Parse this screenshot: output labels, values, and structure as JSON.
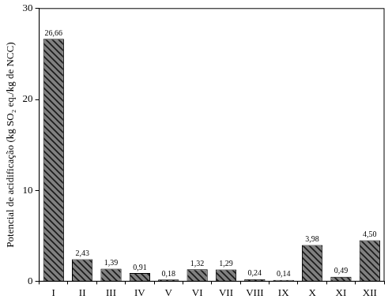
{
  "chart_data": {
    "type": "bar",
    "y_label": "Potencial de acidificação (kg SO₂ eq./kg de NCC)",
    "categories": [
      "I",
      "II",
      "III",
      "IV",
      "V",
      "VI",
      "VII",
      "VIII",
      "IX",
      "X",
      "XI",
      "XII"
    ],
    "values": [
      26.66,
      2.43,
      1.39,
      0.91,
      0.18,
      1.32,
      1.29,
      0.24,
      0.14,
      3.98,
      0.49,
      4.5
    ],
    "value_labels": [
      "26,66",
      "2,43",
      "1,39",
      "0,91",
      "0,18",
      "1,32",
      "1,29",
      "0,24",
      "0,14",
      "3,98",
      "0,49",
      "4,50"
    ],
    "data_labels": true,
    "color": "#808080",
    "ylim": [
      0,
      30
    ],
    "yticks": [
      0,
      10,
      20,
      30
    ],
    "grid": false
  }
}
